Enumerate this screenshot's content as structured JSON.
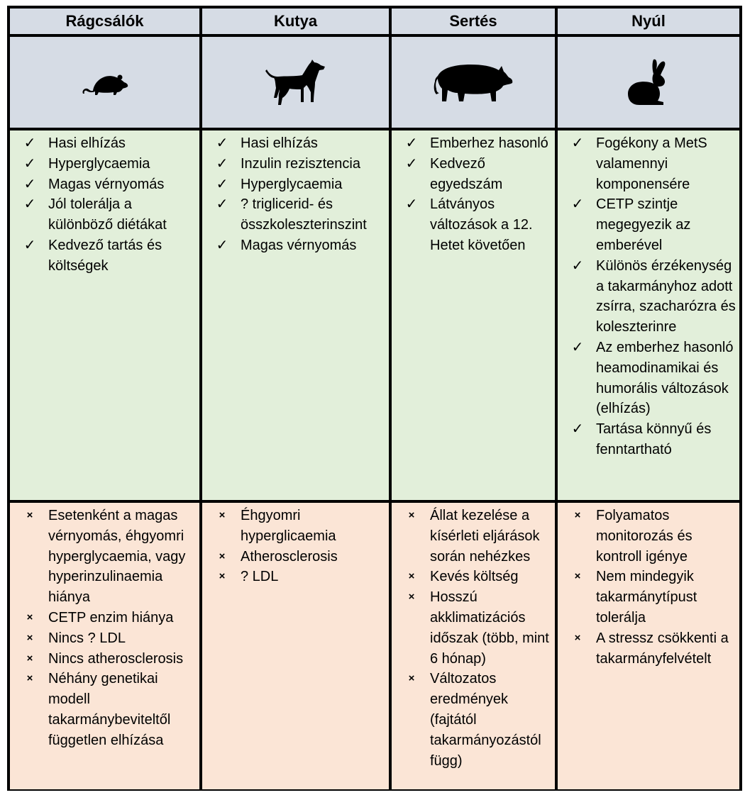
{
  "columns": [
    {
      "header": "Rágcsálók",
      "animal_icon": "rat-icon",
      "pros": [
        "Hasi elhízás",
        "Hyperglycaemia",
        "Magas vérnyomás",
        "Jól tolerálja a különböző diétákat",
        "Kedvező tartás és költségek"
      ],
      "cons": [
        "Esetenként a magas vérnyomás, éhgyomri hyperglycaemia, vagy hyperinzulinaemia hiánya",
        "CETP enzim hiánya",
        "Nincs ? LDL",
        "Nincs atherosclerosis",
        "Néhány genetikai modell takarmánybeviteltől független elhízása"
      ]
    },
    {
      "header": "Kutya",
      "animal_icon": "dog-icon",
      "pros": [
        "Hasi elhízás",
        "Inzulin rezisztencia",
        "Hyperglycaemia",
        "? triglicerid- és összkoleszterinszint",
        "Magas vérnyomás"
      ],
      "cons": [
        "Éhgyomri hyperglicaemia",
        "Atherosclerosis",
        "? LDL"
      ]
    },
    {
      "header": "Sertés",
      "animal_icon": "pig-icon",
      "pros": [
        "Emberhez hasonló",
        "Kedvező egyedszám",
        "Látványos változások a 12. Hetet követően"
      ],
      "cons": [
        "Állat kezelése a kísérleti eljárások során nehézkes",
        "Kevés költség",
        "Hosszú akklimatizációs időszak (több, mint 6 hónap)",
        "Változatos eredmények (fajtától takarmányozástól függ)"
      ]
    },
    {
      "header": "Nyúl",
      "animal_icon": "rabbit-icon",
      "pros": [
        "Fogékony a MetS valamennyi komponensére",
        "CETP szintje megegyezik az emberével",
        "Különös érzékenység a takarmányhoz adott zsírra, szacharózra és koleszterinre",
        "Az emberhez hasonló heamodinamikai és humorális változások (elhízás)",
        "Tartása könnyű és fenntartható"
      ],
      "cons": [
        "Folyamatos monitorozás és kontroll igénye",
        "Nem mindegyik takarmánytípust tolerálja",
        "A stressz csökkenti a takarmányfelvételt"
      ]
    }
  ],
  "marks": {
    "pro": "✓",
    "con": "×"
  },
  "colors": {
    "header_bg": "#d6dce5",
    "pros_bg": "#e2efda",
    "cons_bg": "#fbe5d6",
    "border": "#000000"
  }
}
